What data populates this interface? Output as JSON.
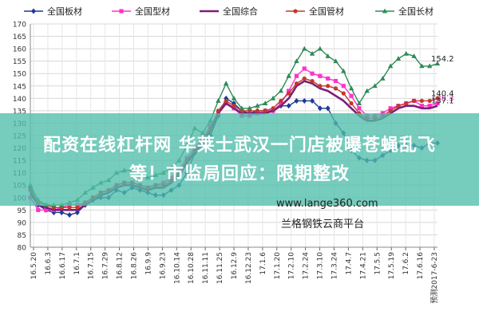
{
  "chart_data": {
    "type": "line",
    "title": "",
    "xlabel": "",
    "ylabel": "",
    "ylim": [
      80,
      170
    ],
    "yticks": [
      80,
      85,
      90,
      95,
      100,
      105,
      110,
      115,
      120,
      125,
      130,
      135,
      140,
      145,
      150,
      155,
      160,
      165,
      170
    ],
    "grid": true,
    "legend_position": "top",
    "x_tick_labels": [
      "16.5.20",
      "16.6.3",
      "16.6.17",
      "16.7.1",
      "16.7.15",
      "16.7.29",
      "16.8.12",
      "16.8.26",
      "16.9.9",
      "16.9.23",
      "16.10.14",
      "16.10.28",
      "16.11.11",
      "16.11.25",
      "16.12.9",
      "16.12.23",
      "17.1.6",
      "17.1.20",
      "17.2.10",
      "17.2.24",
      "17.3.10",
      "17.3.24",
      "17.4.7",
      "17.4.21",
      "17.5.5",
      "17.5.19",
      "17.6.2",
      "17.6.16",
      "预测2017-6-23"
    ],
    "series": [
      {
        "name": "全国板材",
        "color": "#1f3a93",
        "marker": "diamond",
        "values": [
          104,
          97,
          95,
          94,
          94,
          93,
          94,
          97,
          99,
          100,
          100,
          103,
          102,
          104,
          103,
          102,
          101,
          101,
          103,
          105,
          110,
          118,
          121,
          125,
          133,
          140,
          138,
          135,
          134,
          135,
          135,
          135,
          137,
          137,
          139,
          139,
          139,
          136,
          136,
          130,
          126,
          119,
          116,
          115,
          115,
          117,
          119,
          121,
          121,
          121,
          120,
          122,
          122
        ],
        "end_label": ""
      },
      {
        "name": "全国型材",
        "color": "#ff33cc",
        "marker": "square",
        "values": [
          100,
          95,
          95,
          95,
          96,
          97,
          97,
          98,
          100,
          102,
          103,
          105,
          106,
          106,
          105,
          104,
          105,
          106,
          108,
          111,
          116,
          120,
          124,
          129,
          134,
          138,
          136,
          133,
          133,
          134,
          135,
          135,
          138,
          143,
          149,
          152,
          150,
          149,
          148,
          147,
          145,
          141,
          136,
          133,
          133,
          134,
          136,
          137,
          138,
          139,
          137,
          137,
          138
        ],
        "end_label": "138.3"
      },
      {
        "name": "全国综合",
        "color": "#7a1f7a",
        "marker": "line",
        "values": [
          102,
          97,
          96,
          95,
          95,
          95,
          95,
          97,
          99,
          101,
          102,
          104,
          105,
          105,
          104,
          103,
          104,
          104,
          106,
          109,
          114,
          118,
          122,
          127,
          134,
          138,
          136,
          134,
          134,
          134,
          134,
          135,
          137,
          140,
          145,
          147,
          146,
          144,
          143,
          141,
          139,
          136,
          133,
          131,
          131,
          132,
          134,
          136,
          137,
          137,
          136,
          136,
          137
        ],
        "end_label": "137.1"
      },
      {
        "name": "全国管材",
        "color": "#c0392b",
        "marker": "circle",
        "values": [
          103,
          98,
          97,
          96,
          96,
          96,
          96,
          98,
          100,
          102,
          103,
          105,
          106,
          106,
          105,
          104,
          105,
          105,
          107,
          110,
          115,
          119,
          123,
          128,
          135,
          139,
          137,
          135,
          135,
          135,
          135,
          136,
          139,
          142,
          146,
          148,
          147,
          145,
          145,
          144,
          142,
          138,
          134,
          132,
          132,
          133,
          135,
          137,
          138,
          139,
          139,
          139,
          140
        ],
        "end_label": "140.4"
      },
      {
        "name": "全国长材",
        "color": "#2e8b57",
        "marker": "triangle",
        "values": [
          105,
          99,
          97,
          97,
          97,
          98,
          99,
          102,
          104,
          106,
          107,
          110,
          111,
          111,
          109,
          108,
          109,
          110,
          112,
          115,
          121,
          128,
          126,
          131,
          139,
          146,
          140,
          136,
          136,
          137,
          138,
          140,
          143,
          149,
          155,
          160,
          158,
          160,
          157,
          155,
          151,
          144,
          138,
          143,
          145,
          148,
          153,
          156,
          158,
          157,
          153,
          153,
          154
        ],
        "end_label": "154.2"
      }
    ]
  },
  "overlay": {
    "banner_line1": "配资在线杠杆网 华莱士武汉一门店被曝苍蝇乱飞",
    "banner_line2": "等！市监局回应：限期整改",
    "watermark_url": "www.lange360.com",
    "watermark_name": "兰格钢铁云商平台"
  }
}
